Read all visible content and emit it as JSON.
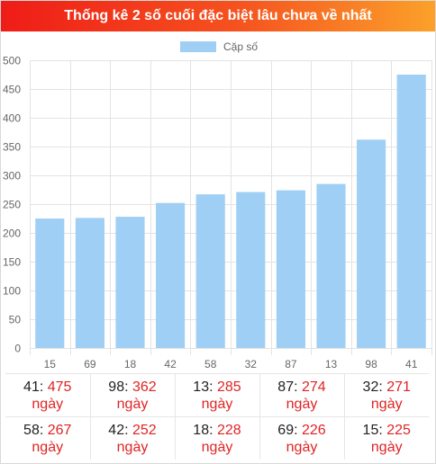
{
  "title": "Thống kê 2 số cuối đặc biệt lâu chưa về nhất",
  "chart_data": {
    "type": "bar",
    "categories": [
      "15",
      "69",
      "18",
      "42",
      "58",
      "32",
      "87",
      "13",
      "98",
      "41"
    ],
    "series": [
      {
        "name": "Cặp số",
        "values": [
          225,
          226,
          228,
          252,
          267,
          271,
          274,
          285,
          362,
          475
        ]
      }
    ],
    "ylim": [
      0,
      500
    ],
    "yticks": [
      "0",
      "50",
      "100",
      "150",
      "200",
      "250",
      "300",
      "350",
      "400",
      "450",
      "500"
    ],
    "legend_position": "top",
    "grid": true,
    "bar_color": "#9fcff4",
    "grid_color": "#e3e3e3"
  },
  "stats": {
    "unit": "ngày",
    "rows": [
      [
        {
          "num": "41",
          "days": "475"
        },
        {
          "num": "98",
          "days": "362"
        },
        {
          "num": "13",
          "days": "285"
        },
        {
          "num": "87",
          "days": "274"
        },
        {
          "num": "32",
          "days": "271"
        }
      ],
      [
        {
          "num": "58",
          "days": "267"
        },
        {
          "num": "42",
          "days": "252"
        },
        {
          "num": "18",
          "days": "228"
        },
        {
          "num": "69",
          "days": "226"
        },
        {
          "num": "15",
          "days": "225"
        }
      ]
    ]
  }
}
